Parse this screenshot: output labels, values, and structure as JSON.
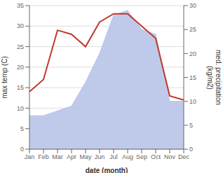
{
  "chart_data": {
    "type": "line",
    "xlabel": "date (month)",
    "ylabel": "max temp (C)",
    "y2label": "med. precipitation\n(kg/m2)",
    "categories": [
      "Jan",
      "Feb",
      "Mar",
      "Apr",
      "May",
      "Jun",
      "Jul",
      "Aug",
      "Sep",
      "Oct",
      "Nov",
      "Dec"
    ],
    "series": [
      {
        "type": "area",
        "axis": "y2",
        "color": "#b8c4e8",
        "values": [
          7,
          7,
          8,
          9,
          14,
          20,
          28,
          29,
          25,
          24,
          10,
          10
        ]
      },
      {
        "type": "line",
        "color": "#c0392b",
        "values": [
          14,
          17,
          29,
          28,
          25,
          31,
          33,
          33,
          30,
          27,
          13,
          12
        ]
      }
    ],
    "ylim": [
      0,
      35
    ],
    "yticks": [
      0,
      5,
      10,
      15,
      20,
      25,
      30,
      35
    ],
    "y2lim": [
      0,
      30
    ],
    "y2ticks": [
      0,
      5,
      10,
      15,
      20,
      25,
      30
    ],
    "grid": true
  }
}
